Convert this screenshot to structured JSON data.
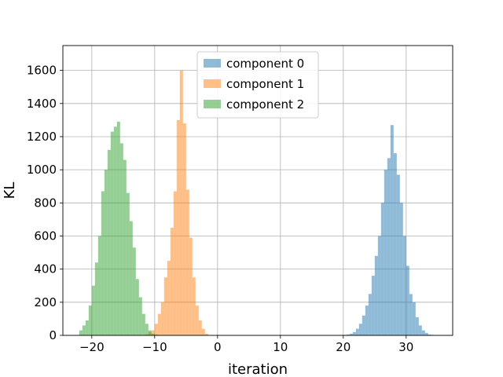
{
  "chart_data": {
    "type": "bar",
    "title": "",
    "xlabel": "iteration",
    "ylabel": "KL",
    "xlim": [
      -24.6,
      37.4
    ],
    "ylim": [
      0,
      1750
    ],
    "xticks": [
      -20,
      -10,
      0,
      10,
      20,
      30
    ],
    "yticks": [
      0,
      200,
      400,
      600,
      800,
      1000,
      1200,
      1400,
      1600
    ],
    "grid": true,
    "legend_position": "top-center",
    "bin_width": 0.5,
    "bar_opacity": 0.5,
    "series": [
      {
        "name": "component 0",
        "color": "#1f77b4",
        "bins": [
          {
            "x": 20.0,
            "y": 3
          },
          {
            "x": 20.5,
            "y": 5
          },
          {
            "x": 21.0,
            "y": 10
          },
          {
            "x": 21.5,
            "y": 20
          },
          {
            "x": 22.0,
            "y": 40
          },
          {
            "x": 22.5,
            "y": 70
          },
          {
            "x": 23.0,
            "y": 120
          },
          {
            "x": 23.5,
            "y": 180
          },
          {
            "x": 24.0,
            "y": 250
          },
          {
            "x": 24.5,
            "y": 360
          },
          {
            "x": 25.0,
            "y": 480
          },
          {
            "x": 25.5,
            "y": 600
          },
          {
            "x": 26.0,
            "y": 800
          },
          {
            "x": 26.5,
            "y": 1000
          },
          {
            "x": 27.0,
            "y": 1070
          },
          {
            "x": 27.5,
            "y": 1270
          },
          {
            "x": 28.0,
            "y": 1100
          },
          {
            "x": 28.5,
            "y": 970
          },
          {
            "x": 29.0,
            "y": 800
          },
          {
            "x": 29.5,
            "y": 600
          },
          {
            "x": 30.0,
            "y": 420
          },
          {
            "x": 30.5,
            "y": 250
          },
          {
            "x": 31.0,
            "y": 200
          },
          {
            "x": 31.5,
            "y": 110
          },
          {
            "x": 32.0,
            "y": 60
          },
          {
            "x": 32.5,
            "y": 30
          },
          {
            "x": 33.0,
            "y": 15
          },
          {
            "x": 33.5,
            "y": 5
          },
          {
            "x": 34.0,
            "y": 3
          }
        ]
      },
      {
        "name": "component 1",
        "color": "#ff7f0e",
        "bins": [
          {
            "x": -11.5,
            "y": 5
          },
          {
            "x": -11.0,
            "y": 20
          },
          {
            "x": -10.5,
            "y": 30
          },
          {
            "x": -10.0,
            "y": 70
          },
          {
            "x": -9.5,
            "y": 130
          },
          {
            "x": -9.0,
            "y": 200
          },
          {
            "x": -8.5,
            "y": 350
          },
          {
            "x": -8.0,
            "y": 450
          },
          {
            "x": -7.5,
            "y": 650
          },
          {
            "x": -7.0,
            "y": 870
          },
          {
            "x": -6.5,
            "y": 1300
          },
          {
            "x": -6.0,
            "y": 1600
          },
          {
            "x": -5.5,
            "y": 1280
          },
          {
            "x": -5.0,
            "y": 880
          },
          {
            "x": -4.5,
            "y": 590
          },
          {
            "x": -4.0,
            "y": 350
          },
          {
            "x": -3.5,
            "y": 180
          },
          {
            "x": -3.0,
            "y": 90
          },
          {
            "x": -2.5,
            "y": 40
          },
          {
            "x": -2.0,
            "y": 10
          }
        ]
      },
      {
        "name": "component 2",
        "color": "#2ca02c",
        "bins": [
          {
            "x": -22.0,
            "y": 30
          },
          {
            "x": -21.5,
            "y": 60
          },
          {
            "x": -21.0,
            "y": 90
          },
          {
            "x": -20.5,
            "y": 180
          },
          {
            "x": -20.0,
            "y": 300
          },
          {
            "x": -19.5,
            "y": 440
          },
          {
            "x": -19.0,
            "y": 600
          },
          {
            "x": -18.5,
            "y": 870
          },
          {
            "x": -18.0,
            "y": 1000
          },
          {
            "x": -17.5,
            "y": 1120
          },
          {
            "x": -17.0,
            "y": 1230
          },
          {
            "x": -16.5,
            "y": 1260
          },
          {
            "x": -16.0,
            "y": 1290
          },
          {
            "x": -15.5,
            "y": 1160
          },
          {
            "x": -15.0,
            "y": 1060
          },
          {
            "x": -14.5,
            "y": 860
          },
          {
            "x": -14.0,
            "y": 690
          },
          {
            "x": -13.5,
            "y": 530
          },
          {
            "x": -13.0,
            "y": 340
          },
          {
            "x": -12.5,
            "y": 230
          },
          {
            "x": -12.0,
            "y": 130
          },
          {
            "x": -11.5,
            "y": 70
          },
          {
            "x": -11.0,
            "y": 30
          },
          {
            "x": -10.5,
            "y": 10
          },
          {
            "x": -10.0,
            "y": 5
          }
        ]
      }
    ]
  }
}
